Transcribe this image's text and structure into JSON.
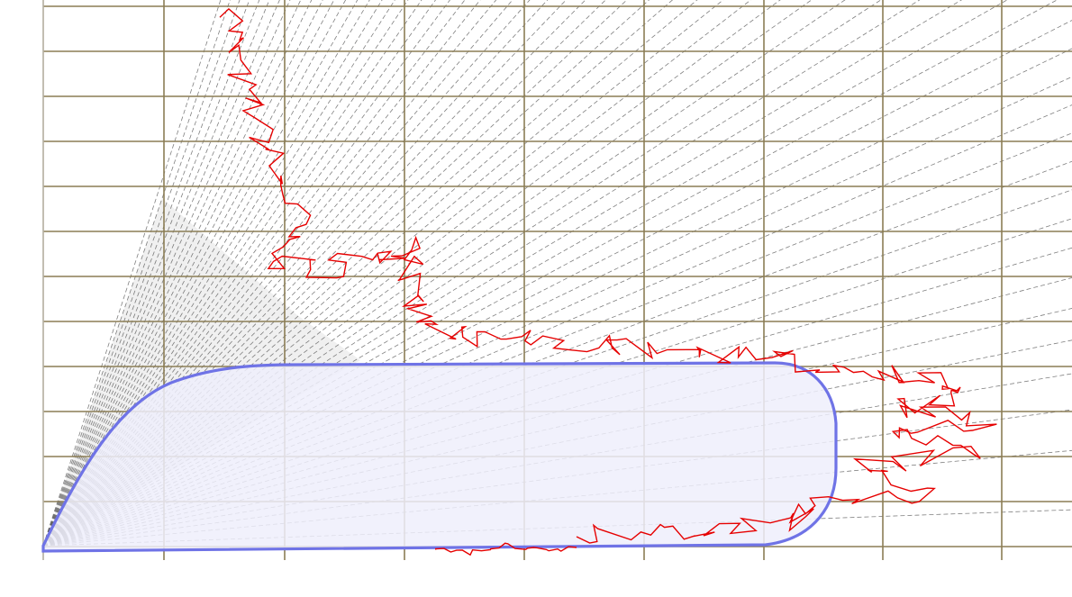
{
  "diagram": {
    "grid": {
      "x_line_count": 9,
      "y_line_count": 12,
      "color": "#8b7d55"
    },
    "rays": {
      "count": 60,
      "color": "#555555"
    },
    "noise_trace": {
      "color": "#e60000"
    },
    "envelope": {
      "stroke_color": "#6f73e6",
      "fill_color": "#eeeefc"
    },
    "labels": {
      "y_axis_label": "",
      "x_axis_label": "",
      "origin_label": "",
      "ray_label": ""
    }
  }
}
